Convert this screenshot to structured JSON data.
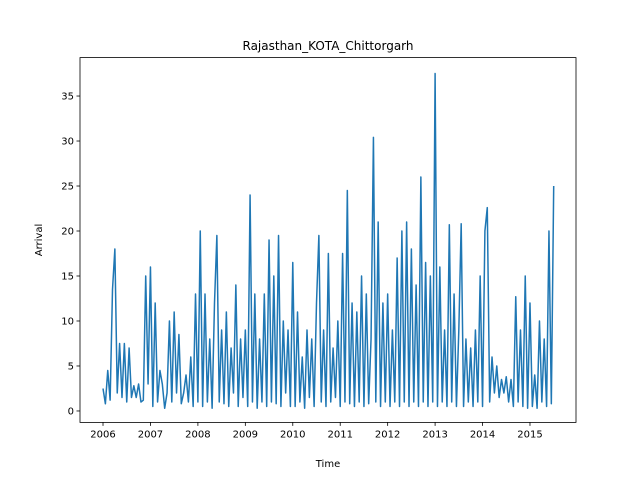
{
  "chart_data": {
    "type": "line",
    "title": "Rajasthan_KOTA_Chittorgarh",
    "xlabel": "Time",
    "ylabel": "Arrival",
    "x": [
      2006,
      2006.05,
      2006.1,
      2006.15,
      2006.2,
      2006.25,
      2006.3,
      2006.35,
      2006.4,
      2006.45,
      2006.5,
      2006.55,
      2006.6,
      2006.65,
      2006.7,
      2006.75,
      2006.8,
      2006.85,
      2006.9,
      2006.95,
      2007,
      2007.05,
      2007.1,
      2007.15,
      2007.2,
      2007.25,
      2007.3,
      2007.35,
      2007.4,
      2007.45,
      2007.5,
      2007.55,
      2007.6,
      2007.65,
      2007.7,
      2007.75,
      2007.8,
      2007.85,
      2007.9,
      2007.95,
      2008,
      2008.05,
      2008.1,
      2008.15,
      2008.2,
      2008.25,
      2008.3,
      2008.35,
      2008.4,
      2008.45,
      2008.5,
      2008.55,
      2008.6,
      2008.65,
      2008.7,
      2008.75,
      2008.8,
      2008.85,
      2008.9,
      2008.95,
      2009,
      2009.05,
      2009.1,
      2009.15,
      2009.2,
      2009.25,
      2009.3,
      2009.35,
      2009.4,
      2009.45,
      2009.5,
      2009.55,
      2009.6,
      2009.65,
      2009.7,
      2009.75,
      2009.8,
      2009.85,
      2009.9,
      2009.95,
      2010,
      2010.05,
      2010.1,
      2010.15,
      2010.2,
      2010.25,
      2010.3,
      2010.35,
      2010.4,
      2010.45,
      2010.5,
      2010.55,
      2010.6,
      2010.65,
      2010.7,
      2010.75,
      2010.8,
      2010.85,
      2010.9,
      2010.95,
      2011,
      2011.05,
      2011.1,
      2011.15,
      2011.2,
      2011.25,
      2011.3,
      2011.35,
      2011.4,
      2011.45,
      2011.5,
      2011.55,
      2011.6,
      2011.65,
      2011.7,
      2011.75,
      2011.8,
      2011.85,
      2011.9,
      2011.95,
      2012,
      2012.05,
      2012.1,
      2012.15,
      2012.2,
      2012.25,
      2012.3,
      2012.35,
      2012.4,
      2012.45,
      2012.5,
      2012.55,
      2012.6,
      2012.65,
      2012.7,
      2012.75,
      2012.8,
      2012.85,
      2012.9,
      2012.95,
      2013,
      2013.05,
      2013.1,
      2013.15,
      2013.2,
      2013.25,
      2013.3,
      2013.35,
      2013.4,
      2013.45,
      2013.5,
      2013.55,
      2013.6,
      2013.65,
      2013.7,
      2013.75,
      2013.8,
      2013.85,
      2013.9,
      2013.95,
      2014,
      2014.05,
      2014.1,
      2014.15,
      2014.2,
      2014.25,
      2014.3,
      2014.35,
      2014.4,
      2014.45,
      2014.5,
      2014.55,
      2014.6,
      2014.65,
      2014.7,
      2014.75,
      2014.8,
      2014.85,
      2014.9,
      2014.95,
      2015,
      2015.05,
      2015.1,
      2015.15,
      2015.2,
      2015.25,
      2015.3,
      2015.35,
      2015.4,
      2015.45,
      2015.5
    ],
    "series": [
      {
        "color": "#1f77b4",
        "values": [
          2.5,
          0.8,
          4.5,
          1.2,
          13.5,
          18,
          2,
          7.5,
          1.5,
          7.5,
          1,
          7,
          1.5,
          2.8,
          1.5,
          3,
          1,
          1.2,
          15,
          3,
          16,
          0.5,
          12,
          1,
          4.5,
          3,
          0.3,
          2,
          10,
          1,
          11,
          2,
          8.5,
          0.8,
          2,
          4,
          1,
          6,
          0.5,
          13,
          1,
          20,
          0.5,
          13,
          1,
          8,
          0.3,
          12,
          19.5,
          1,
          9,
          0.8,
          11,
          0.5,
          7,
          2,
          14,
          0.5,
          8,
          1.5,
          9,
          0.5,
          24,
          1,
          13,
          0.3,
          8,
          1,
          13,
          0.5,
          19,
          1,
          15,
          0.8,
          19.5,
          0.5,
          10,
          2,
          9,
          0.5,
          16.5,
          0.5,
          11,
          1,
          6,
          0.3,
          9,
          1.5,
          8,
          0.5,
          12,
          19.5,
          1,
          9,
          0.5,
          17.5,
          1,
          7,
          1.5,
          10,
          0.5,
          17.5,
          1,
          24.5,
          0.8,
          12,
          0.5,
          11,
          1,
          15,
          0.5,
          13,
          0.8,
          8,
          30.4,
          1,
          21,
          0.5,
          12,
          1,
          13,
          0.5,
          9,
          1,
          17,
          0.5,
          20,
          1,
          21,
          0.5,
          18,
          1,
          14,
          0.5,
          26,
          1,
          16.5,
          0.5,
          15,
          1,
          37.5,
          0.5,
          16,
          1,
          9,
          0.5,
          20.7,
          1,
          13,
          0.5,
          9,
          20.8,
          0.5,
          8,
          1,
          7,
          0.5,
          9,
          1,
          15,
          0.5,
          20,
          22.6,
          1,
          6,
          2,
          5,
          1.5,
          3.5,
          2,
          3.8,
          1,
          3.5,
          0.5,
          12.7,
          1,
          9,
          0.5,
          15,
          0.3,
          12,
          0.5,
          4,
          0.3,
          10,
          1,
          8,
          0.5,
          20,
          0.8,
          25
        ]
      }
    ],
    "xlim": [
      2005.515,
      2015.97
    ],
    "xticks": [
      2006,
      2007,
      2008,
      2009,
      2010,
      2011,
      2012,
      2013,
      2014,
      2015
    ],
    "ylim": [
      -1.27,
      39.27
    ],
    "yticks": [
      0,
      5,
      10,
      15,
      20,
      25,
      30,
      35
    ]
  }
}
